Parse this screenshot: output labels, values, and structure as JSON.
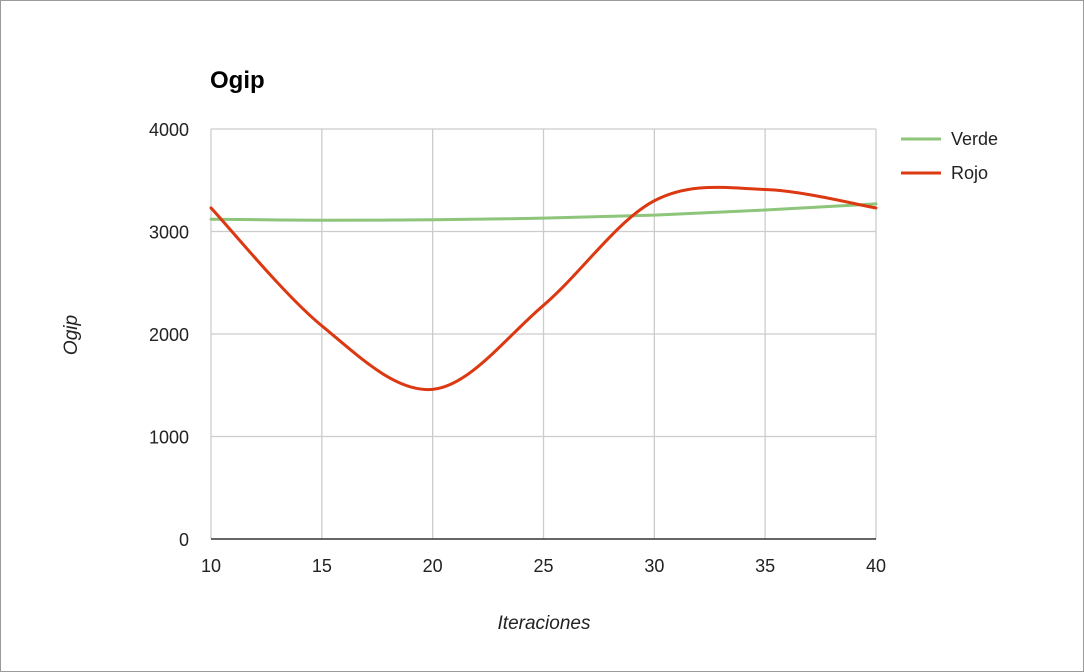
{
  "chart_data": {
    "type": "line",
    "title": "Ogip",
    "xlabel": "Iteraciones",
    "ylabel": "Ogip",
    "xlim": [
      10,
      40
    ],
    "ylim": [
      0,
      4000
    ],
    "x_ticks": [
      10,
      15,
      20,
      25,
      30,
      35,
      40
    ],
    "y_ticks": [
      0,
      1000,
      2000,
      3000,
      4000
    ],
    "grid": true,
    "smooth": true,
    "legend_position": "right",
    "series": [
      {
        "name": "Verde",
        "color": "#8dc57b",
        "x": [
          10,
          15,
          20,
          25,
          30,
          35,
          40
        ],
        "y": [
          3120,
          3110,
          3115,
          3130,
          3160,
          3210,
          3270
        ]
      },
      {
        "name": "Rojo",
        "color": "#dc3912",
        "x": [
          10,
          15,
          20,
          25,
          30,
          35,
          40
        ],
        "y": [
          3230,
          2080,
          1460,
          2280,
          3300,
          3410,
          3230
        ]
      }
    ]
  }
}
